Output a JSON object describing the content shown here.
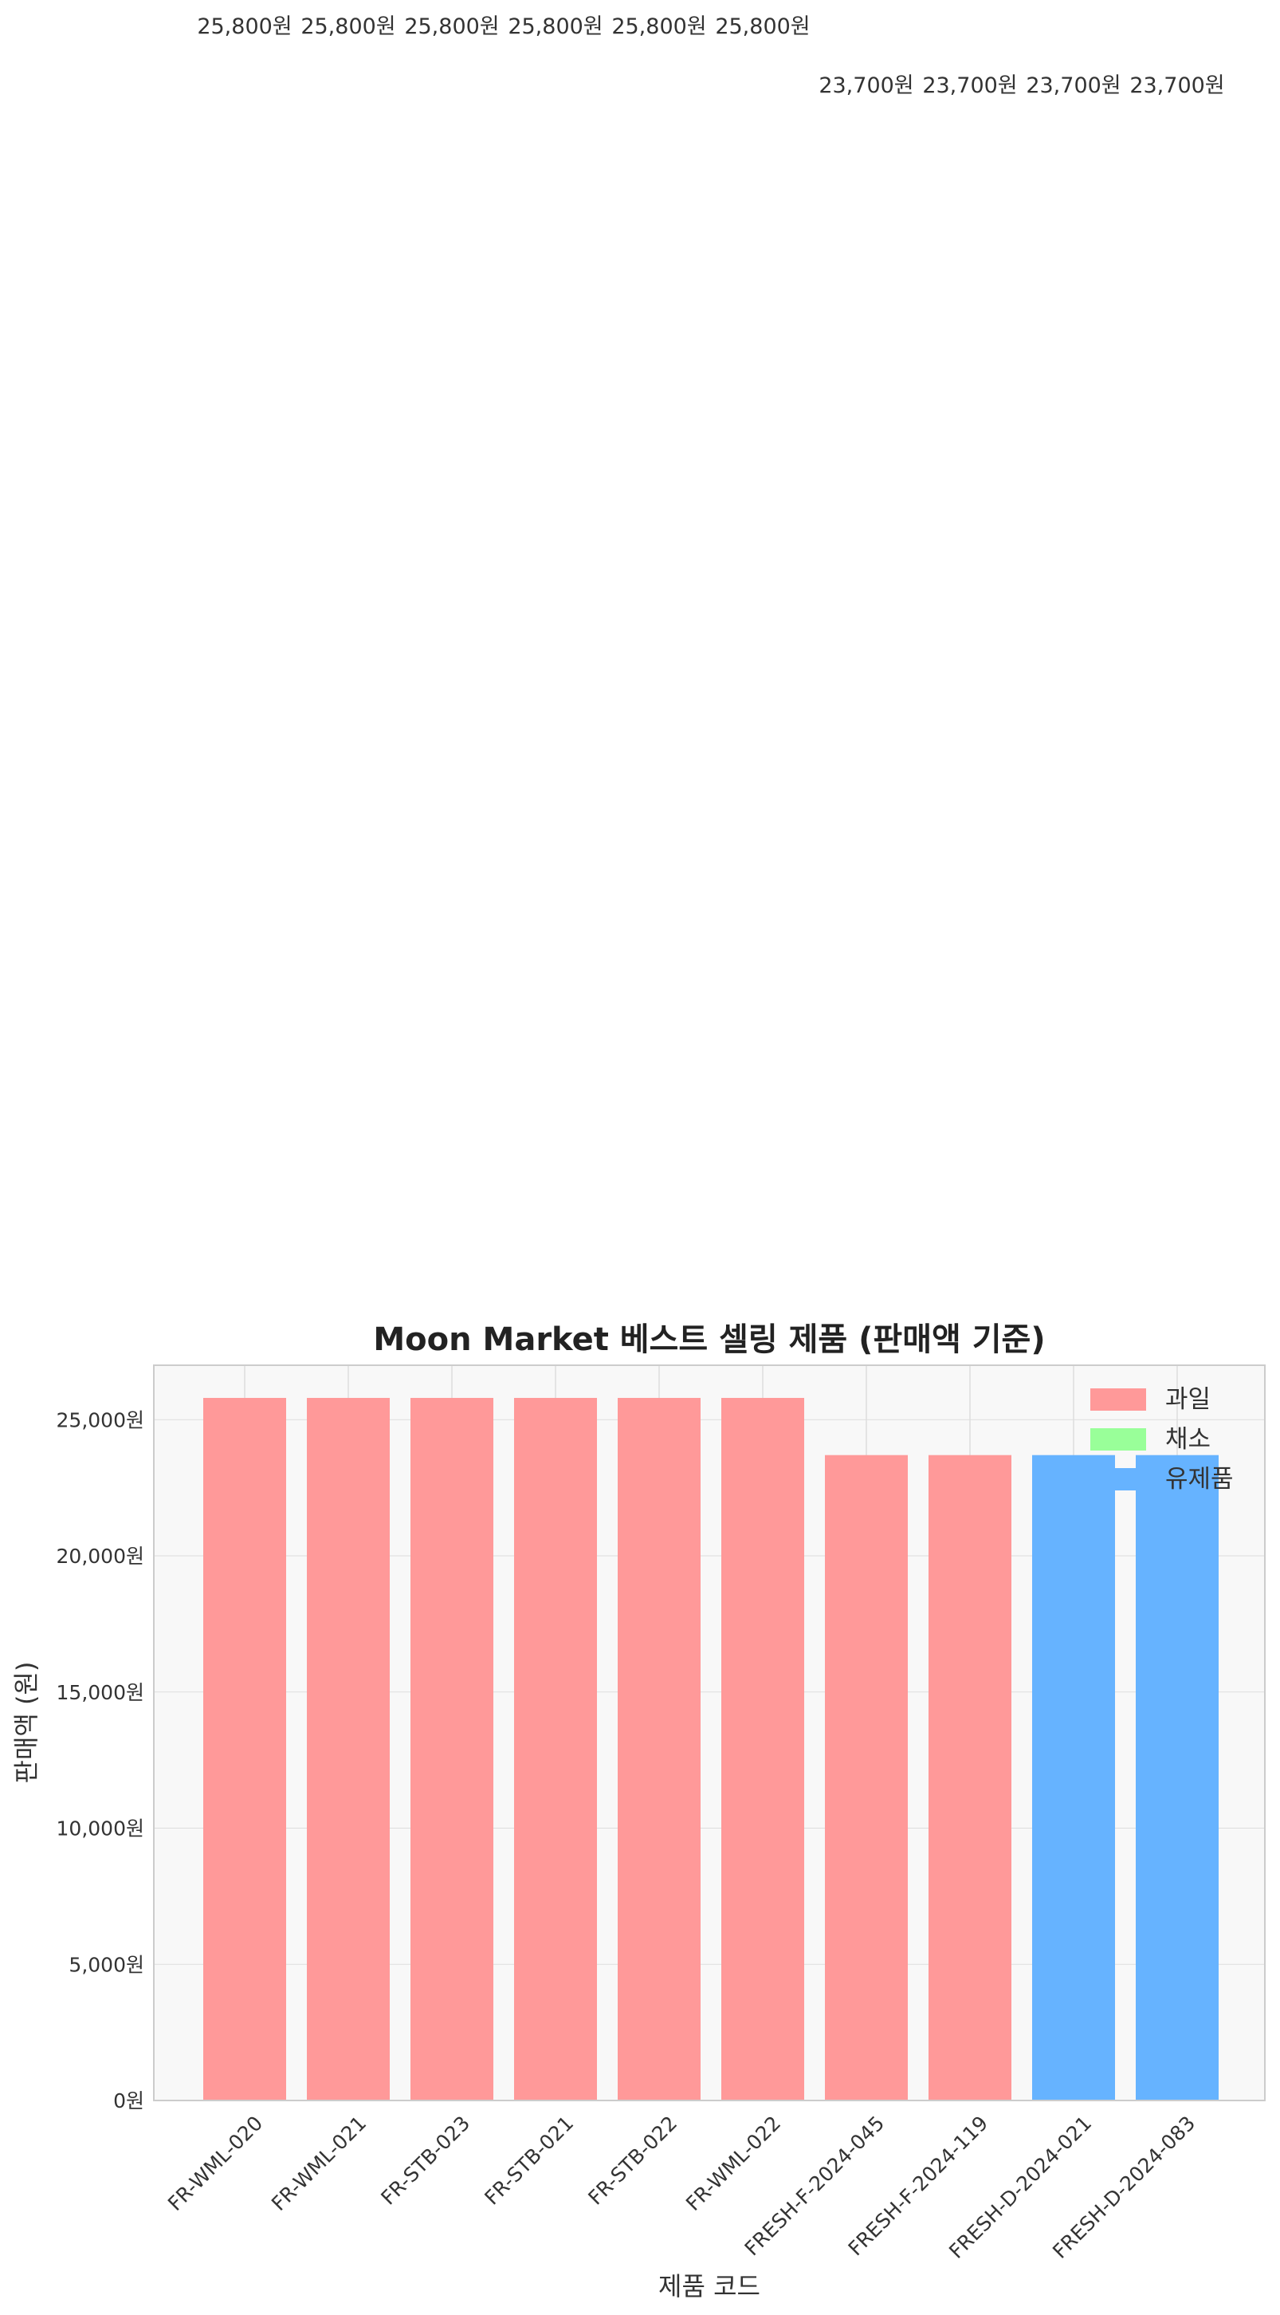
{
  "chart_data": {
    "type": "bar",
    "title": "Moon Market 베스트 셀링 제품 (판매액 기준)",
    "xlabel": "제품 코드",
    "ylabel": "판매액 (원)",
    "categories": [
      "FR-WML-020",
      "FR-WML-021",
      "FR-STB-023",
      "FR-STB-021",
      "FR-STB-022",
      "FR-WML-022",
      "FRESH-F-2024-045",
      "FRESH-F-2024-119",
      "FRESH-D-2024-021",
      "FRESH-D-2024-083"
    ],
    "values": [
      25800,
      25800,
      25800,
      25800,
      25800,
      25800,
      23700,
      23700,
      23700,
      23700
    ],
    "value_labels": [
      "25,800원",
      "25,800원",
      "25,800원",
      "25,800원",
      "25,800원",
      "25,800원",
      "23,700원",
      "23,700원",
      "23,700원",
      "23,700원"
    ],
    "bar_category": [
      "과일",
      "과일",
      "과일",
      "과일",
      "과일",
      "과일",
      "과일",
      "과일",
      "유제품",
      "유제품"
    ],
    "ylim": [
      0,
      27000
    ],
    "yticks": [
      0,
      5000,
      10000,
      15000,
      20000,
      25000
    ],
    "ytick_labels": [
      "0원",
      "5,000원",
      "10,000원",
      "15,000원",
      "20,000원",
      "25,000원"
    ],
    "grid": true,
    "legend": {
      "placement": "top-right",
      "entries": [
        {
          "name": "과일",
          "color": "#ff9999"
        },
        {
          "name": "채소",
          "color": "#99ff99"
        },
        {
          "name": "유제품",
          "color": "#66b3ff"
        }
      ]
    },
    "colors": {
      "plot_background": "#f8f8f8",
      "grid": "#dddddd",
      "frame": "#cccccc"
    }
  }
}
